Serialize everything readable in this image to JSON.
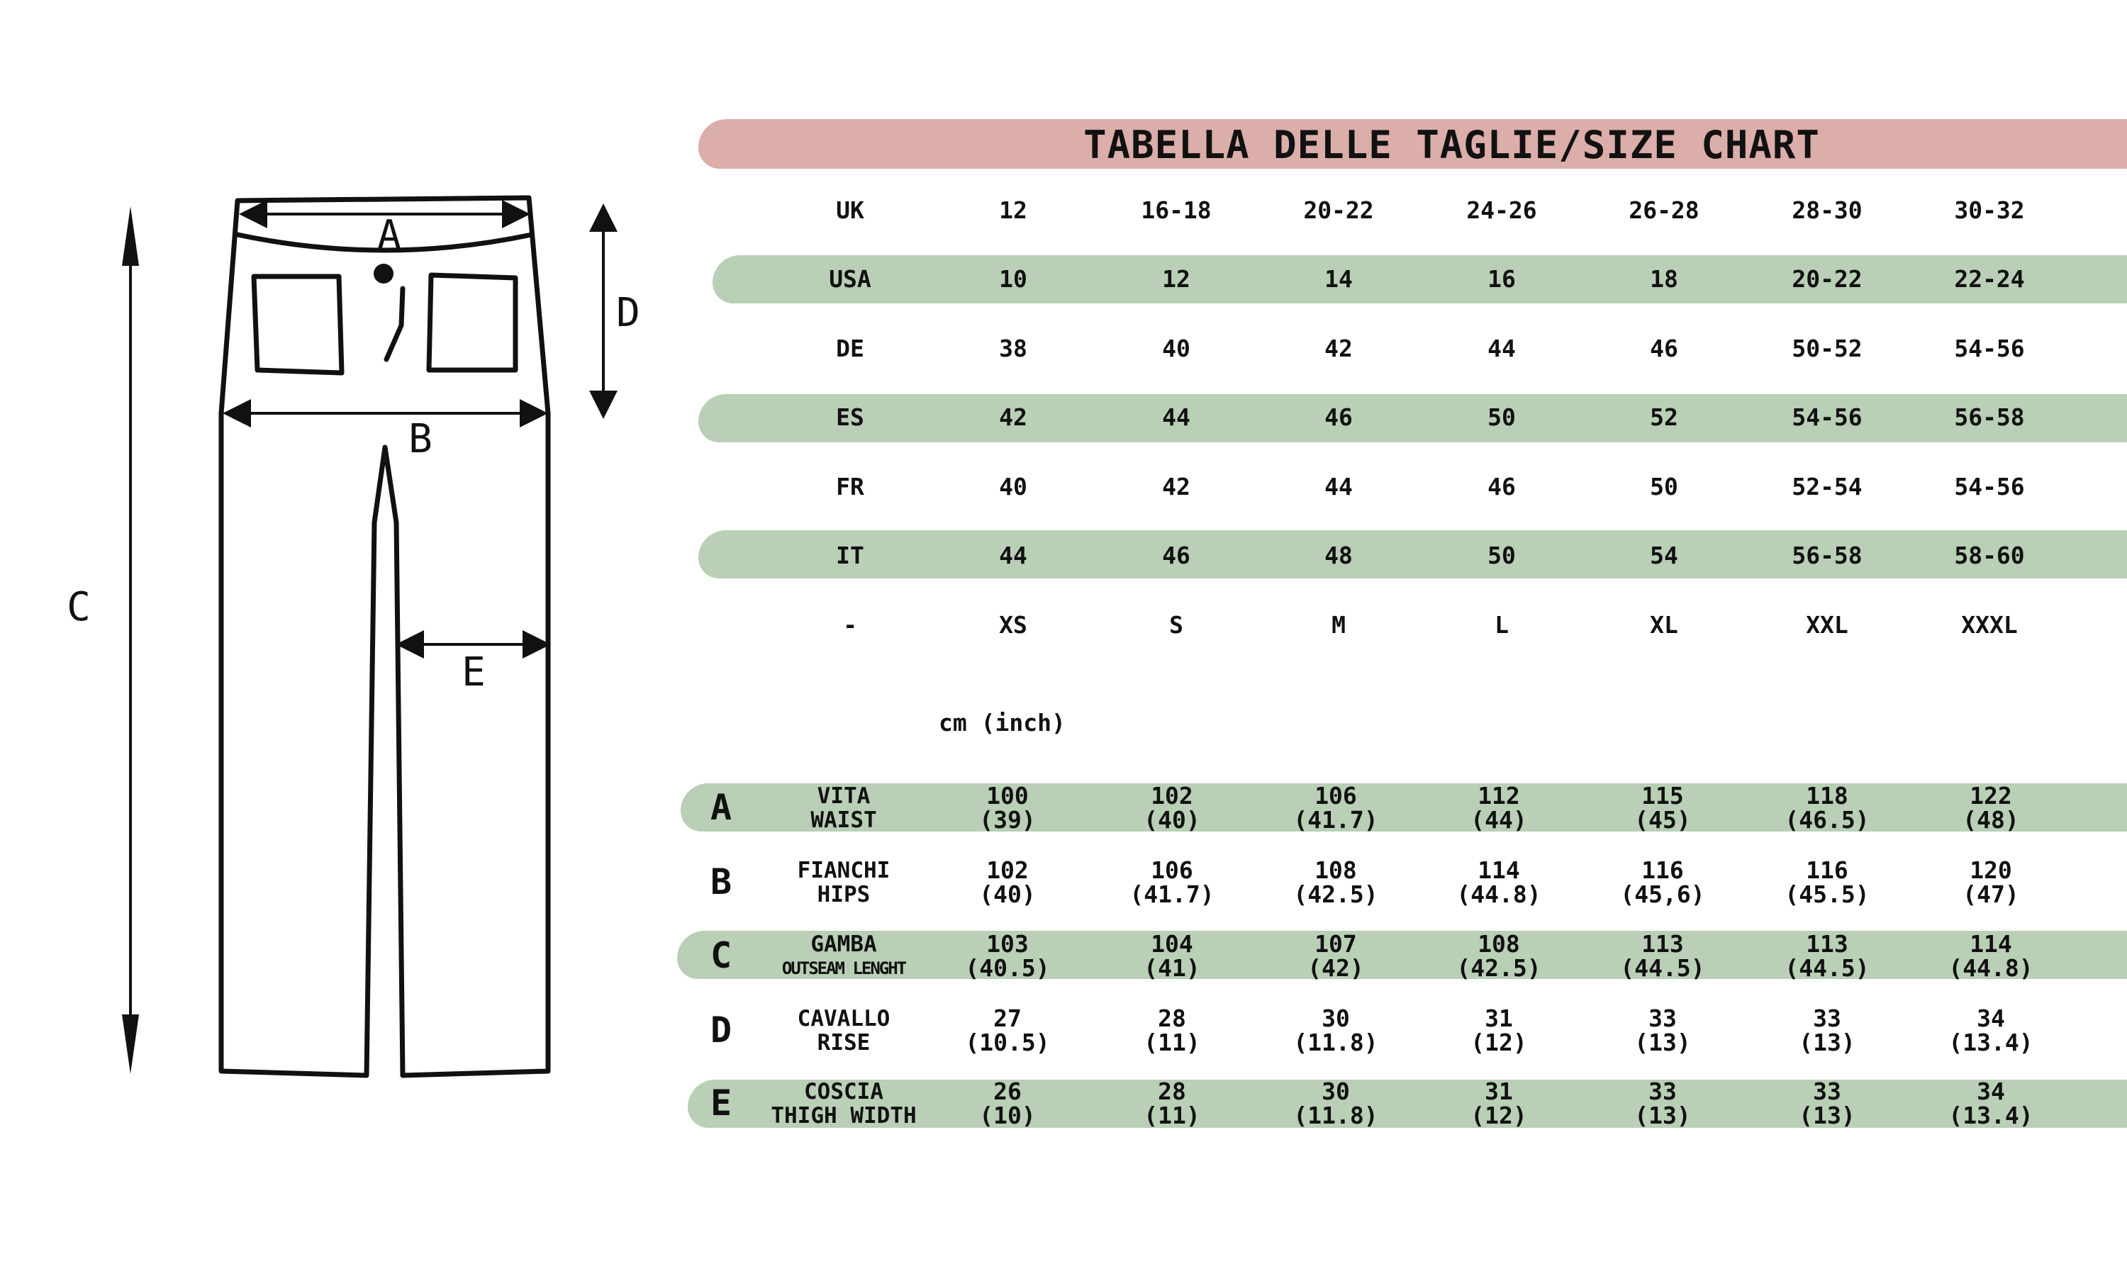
{
  "title": "TABELLA DELLE TAGLIE/SIZE CHART",
  "colors": {
    "title_band": "#dcaea9",
    "row_band": "#b9cfb6",
    "ink": "#111111"
  },
  "diagram": {
    "labels": [
      "A",
      "B",
      "C",
      "D",
      "E"
    ]
  },
  "size_table": {
    "rows": [
      {
        "label": "UK",
        "values": [
          "12",
          "16-18",
          "20-22",
          "24-26",
          "26-28",
          "28-30",
          "30-32"
        ],
        "band": false
      },
      {
        "label": "USA",
        "values": [
          "10",
          "12",
          "14",
          "16",
          "18",
          "20-22",
          "22-24"
        ],
        "band": true
      },
      {
        "label": "DE",
        "values": [
          "38",
          "40",
          "42",
          "44",
          "46",
          "50-52",
          "54-56"
        ],
        "band": false
      },
      {
        "label": "ES",
        "values": [
          "42",
          "44",
          "46",
          "50",
          "52",
          "54-56",
          "56-58"
        ],
        "band": true
      },
      {
        "label": "FR",
        "values": [
          "40",
          "42",
          "44",
          "46",
          "50",
          "52-54",
          "54-56"
        ],
        "band": false
      },
      {
        "label": "IT",
        "values": [
          "44",
          "46",
          "48",
          "50",
          "54",
          "56-58",
          "58-60"
        ],
        "band": true
      },
      {
        "label": "-",
        "values": [
          "XS",
          "S",
          "M",
          "L",
          "XL",
          "XXL",
          "XXXL"
        ],
        "band": false
      }
    ]
  },
  "unit_label": "cm (inch)",
  "measurements": [
    {
      "letter": "A",
      "label_it": "VITA",
      "label_en": "WAIST",
      "band": true,
      "values": [
        [
          "100",
          "(39)"
        ],
        [
          "102",
          "(40)"
        ],
        [
          "106",
          "(41.7)"
        ],
        [
          "112",
          "(44)"
        ],
        [
          "115",
          "(45)"
        ],
        [
          "118",
          "(46.5)"
        ],
        [
          "122",
          "(48)"
        ]
      ]
    },
    {
      "letter": "B",
      "label_it": "FIANCHI",
      "label_en": "HIPS",
      "band": false,
      "values": [
        [
          "102",
          "(40)"
        ],
        [
          "106",
          "(41.7)"
        ],
        [
          "108",
          "(42.5)"
        ],
        [
          "114",
          "(44.8)"
        ],
        [
          "116",
          "(45,6)"
        ],
        [
          "116",
          "(45.5)"
        ],
        [
          "120",
          "(47)"
        ]
      ]
    },
    {
      "letter": "C",
      "label_it": "GAMBA",
      "label_en": "OUTSEAM LENGHT",
      "band": true,
      "values": [
        [
          "103",
          "(40.5)"
        ],
        [
          "104",
          "(41)"
        ],
        [
          "107",
          "(42)"
        ],
        [
          "108",
          "(42.5)"
        ],
        [
          "113",
          "(44.5)"
        ],
        [
          "113",
          "(44.5)"
        ],
        [
          "114",
          "(44.8)"
        ]
      ]
    },
    {
      "letter": "D",
      "label_it": "CAVALLO",
      "label_en": "RISE",
      "band": false,
      "values": [
        [
          "27",
          "(10.5)"
        ],
        [
          "28",
          "(11)"
        ],
        [
          "30",
          "(11.8)"
        ],
        [
          "31",
          "(12)"
        ],
        [
          "33",
          "(13)"
        ],
        [
          "33",
          "(13)"
        ],
        [
          "34",
          "(13.4)"
        ]
      ]
    },
    {
      "letter": "E",
      "label_it": "COSCIA",
      "label_en": "THIGH WIDTH",
      "band": true,
      "values": [
        [
          "26",
          "(10)"
        ],
        [
          "28",
          "(11)"
        ],
        [
          "30",
          "(11.8)"
        ],
        [
          "31",
          "(12)"
        ],
        [
          "33",
          "(13)"
        ],
        [
          "33",
          "(13)"
        ],
        [
          "34",
          "(13.4)"
        ]
      ]
    }
  ]
}
